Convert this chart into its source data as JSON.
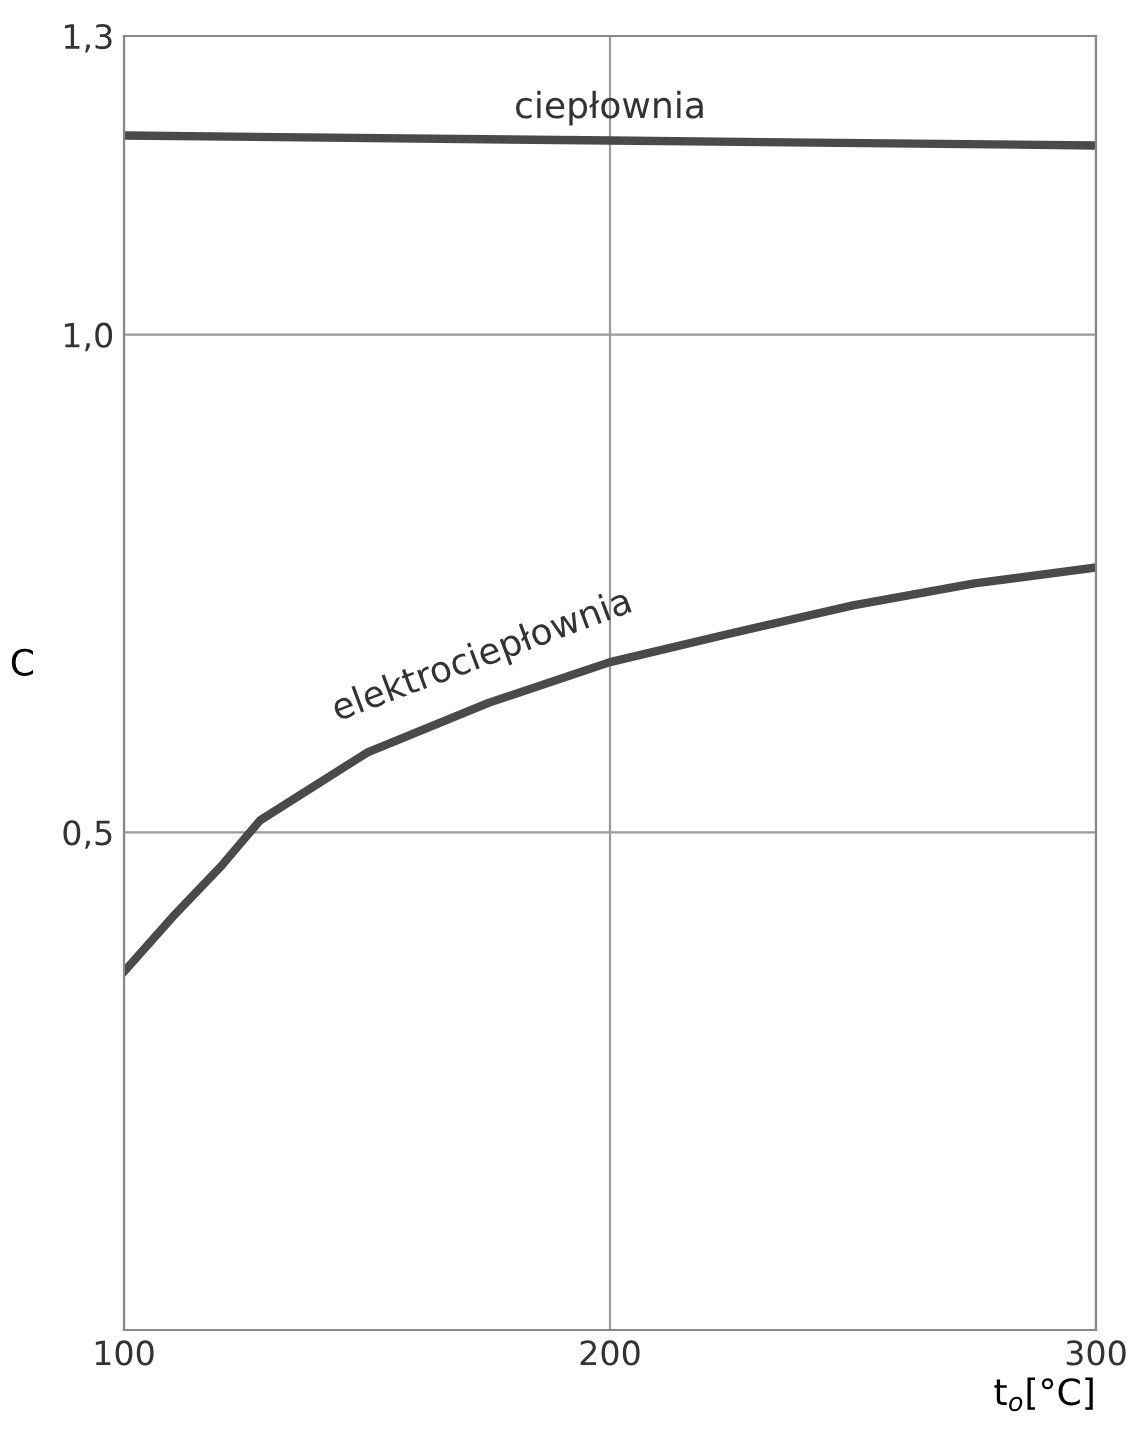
{
  "chart_data": {
    "type": "line",
    "xlabel": "t$_{o}$[°C]",
    "ylabel": "C",
    "x": [
      100,
      110,
      120,
      128,
      150,
      175,
      200,
      225,
      250,
      275,
      300
    ],
    "series": [
      {
        "name": "ciepłownia",
        "color": "#4a4a4a",
        "x": [
          100,
          200,
          300
        ],
        "values": [
          1.2,
          1.195,
          1.19
        ]
      },
      {
        "name": "elektrociepłownia",
        "color": "#4a4a4a",
        "values": [
          0.36,
          0.415,
          0.466,
          0.512,
          0.58,
          0.63,
          0.671,
          0.7,
          0.728,
          0.75,
          0.766
        ]
      }
    ],
    "xlim": [
      100,
      300
    ],
    "xticks": [
      100,
      200,
      300
    ],
    "ylim": [
      0,
      1.3
    ],
    "yticks": [
      {
        "value": 0.5,
        "label": "0,5"
      },
      {
        "value": 1.0,
        "label": "1,0"
      },
      {
        "value": 1.3,
        "label": "1,3"
      }
    ],
    "grid": true,
    "line_style": "solid",
    "marker": "none"
  }
}
